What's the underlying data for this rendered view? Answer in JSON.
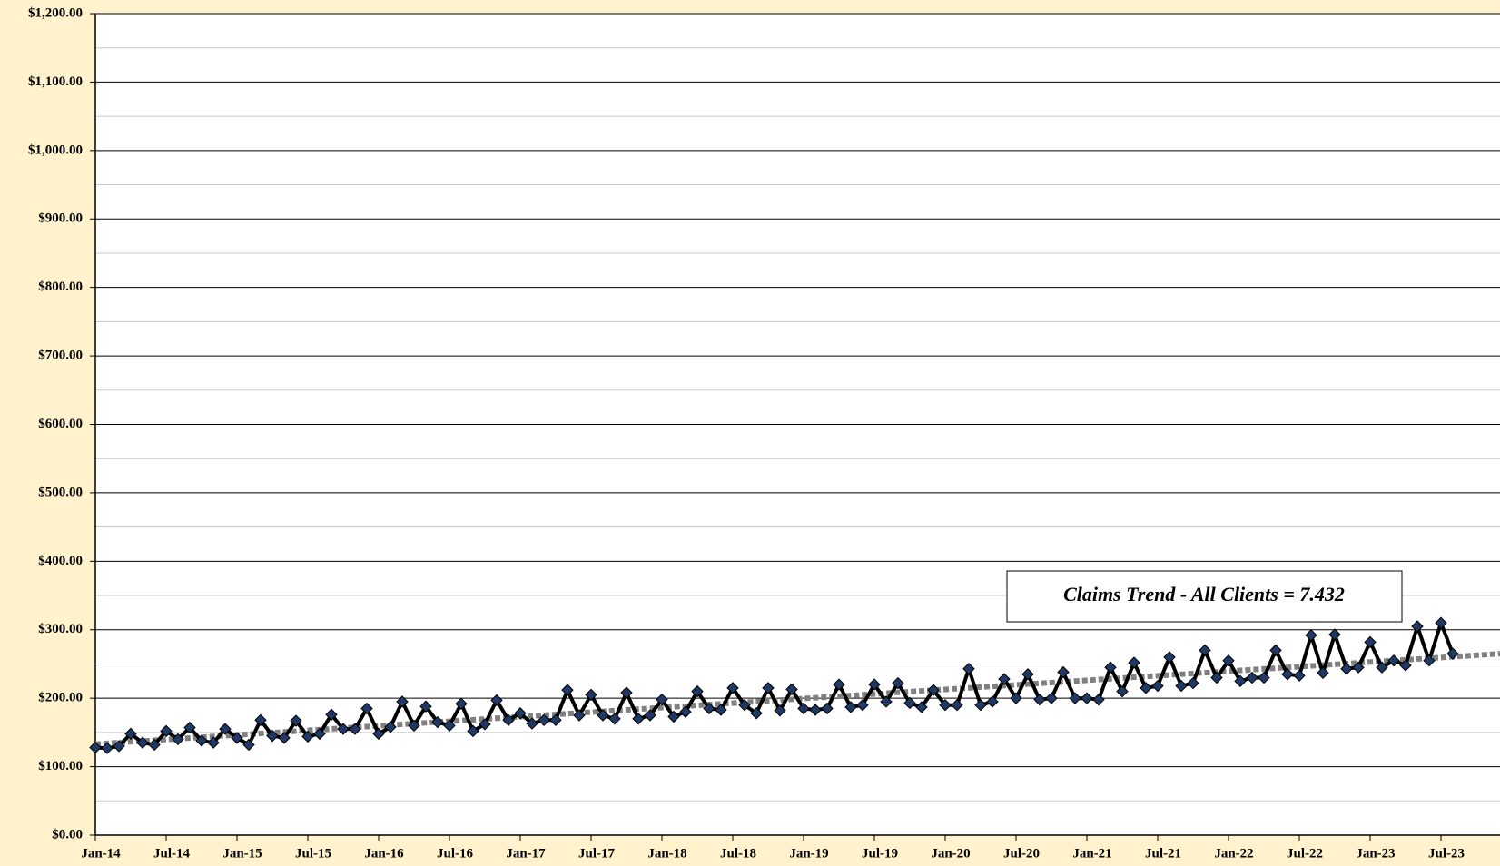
{
  "chart_data": {
    "type": "line",
    "annotation": "Claims Trend - All Clients = 7.432",
    "categories": [
      "Jan-14",
      null,
      null,
      null,
      null,
      null,
      "Jul-14",
      null,
      null,
      null,
      null,
      null,
      "Jan-15",
      null,
      null,
      null,
      null,
      null,
      "Jul-15",
      null,
      null,
      null,
      null,
      null,
      "Jan-16",
      null,
      null,
      null,
      null,
      null,
      "Jul-16",
      null,
      null,
      null,
      null,
      null,
      "Jan-17",
      null,
      null,
      null,
      null,
      null,
      "Jul-17",
      null,
      null,
      null,
      null,
      null,
      "Jan-18",
      null,
      null,
      null,
      null,
      null,
      "Jul-18",
      null,
      null,
      null,
      null,
      null,
      "Jan-19",
      null,
      null,
      null,
      null,
      null,
      "Jul-19",
      null,
      null,
      null,
      null,
      null,
      "Jan-20",
      null,
      null,
      null,
      null,
      null,
      "Jul-20",
      null,
      null,
      null,
      null,
      null,
      "Jan-21",
      null,
      null,
      null,
      null,
      null,
      "Jul-21",
      null,
      null,
      null,
      null,
      null,
      "Jan-22",
      null,
      null,
      null,
      null,
      null,
      "Jul-22",
      null,
      null,
      null,
      null,
      null,
      "Jan-23",
      null,
      null,
      null,
      null,
      null,
      "Jul-23",
      null,
      null,
      null,
      null,
      null
    ],
    "series": [
      {
        "color": "#1f3864",
        "line_color": "#000000",
        "values": [
          128,
          127,
          130,
          148,
          135,
          132,
          152,
          140,
          157,
          138,
          135,
          155,
          142,
          132,
          168,
          145,
          142,
          167,
          144,
          148,
          176,
          155,
          155,
          185,
          148,
          158,
          195,
          160,
          188,
          165,
          160,
          192,
          152,
          162,
          197,
          168,
          178,
          163,
          168,
          168,
          212,
          175,
          205,
          175,
          170,
          208,
          170,
          175,
          198,
          173,
          180,
          210,
          185,
          183,
          215,
          190,
          178,
          215,
          182,
          213,
          185,
          183,
          185,
          220,
          187,
          190,
          220,
          195,
          222,
          193,
          187,
          212,
          190,
          190,
          243,
          190,
          195,
          228,
          200,
          235,
          198,
          200,
          238,
          200,
          200,
          198,
          245,
          210,
          252,
          215,
          218,
          260,
          218,
          222,
          270,
          230,
          255,
          225,
          230,
          230,
          270,
          235,
          233,
          292,
          237,
          293,
          243,
          245,
          282,
          245,
          255,
          248,
          305,
          255,
          310,
          265,
          null,
          null,
          null,
          null
        ]
      }
    ],
    "trendline": {
      "color": "#808080",
      "values": [
        133,
        265
      ]
    },
    "ylim": [
      0,
      1200
    ],
    "yticks": [
      {
        "value": 0,
        "label": "$0.00"
      },
      {
        "value": 100,
        "label": "$100.00"
      },
      {
        "value": 200,
        "label": "$200.00"
      },
      {
        "value": 300,
        "label": "$300.00"
      },
      {
        "value": 400,
        "label": "$400.00"
      },
      {
        "value": 500,
        "label": "$500.00"
      },
      {
        "value": 600,
        "label": "$600.00"
      },
      {
        "value": 700,
        "label": "$700.00"
      },
      {
        "value": 800,
        "label": "$800.00"
      },
      {
        "value": 900,
        "label": "$900.00"
      },
      {
        "value": 1000,
        "label": "$1,000.00"
      },
      {
        "value": 1100,
        "label": "$1,100.00"
      },
      {
        "value": 1200,
        "label": "$1,200.00"
      }
    ],
    "minor_yticks": [
      50,
      150,
      250,
      350,
      450,
      550,
      650,
      750,
      850,
      950,
      1050,
      1150
    ],
    "grid": true
  }
}
